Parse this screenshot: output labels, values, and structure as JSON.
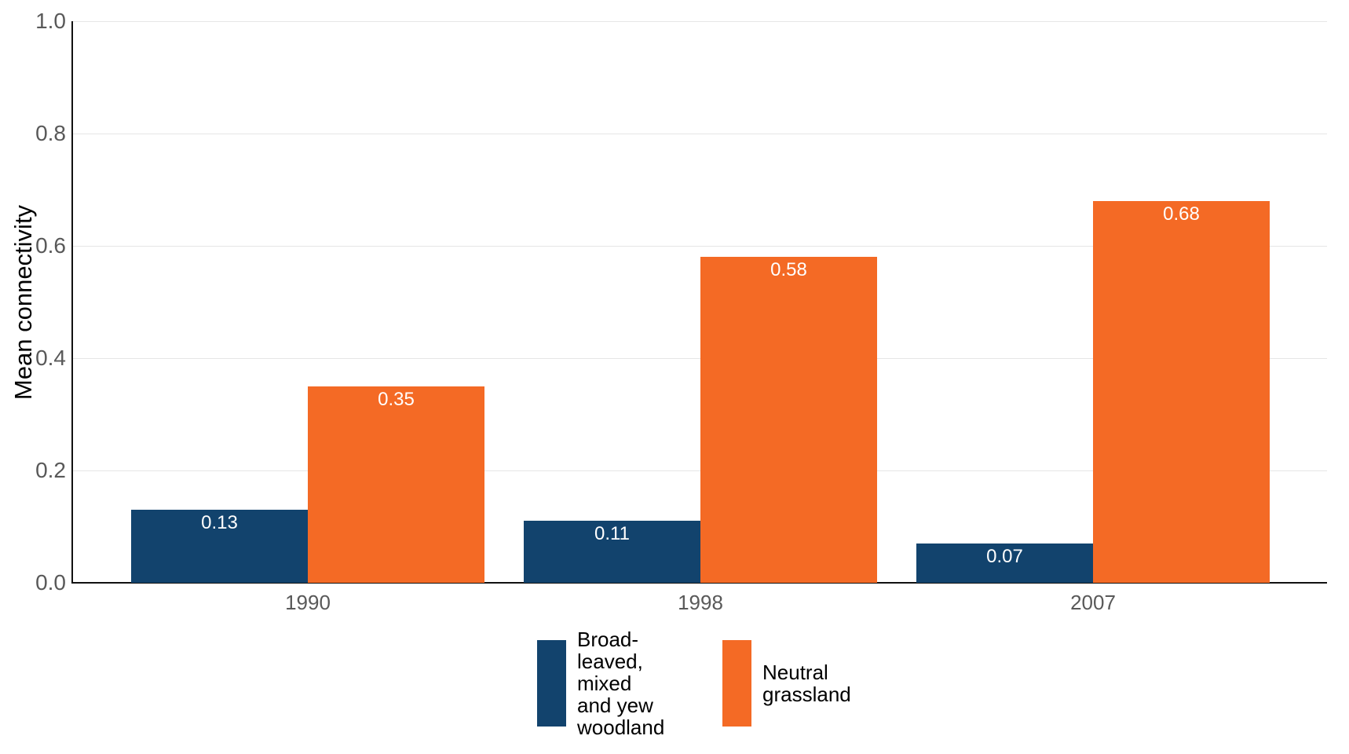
{
  "chart_data": {
    "type": "bar",
    "title": "",
    "xlabel": "",
    "ylabel": "Mean connectivity",
    "categories": [
      "1990",
      "1998",
      "2007"
    ],
    "series": [
      {
        "name": "Broad-leaved, mixed and yew woodland",
        "legend_lines": [
          "Broad-leaved,",
          "mixed",
          "and yew",
          "woodland"
        ],
        "color": "#12436D",
        "values": [
          0.13,
          0.11,
          0.07
        ],
        "labels": [
          "0.13",
          "0.11",
          "0.07"
        ]
      },
      {
        "name": "Neutral grassland",
        "legend_lines": [
          "Neutral",
          "grassland"
        ],
        "color": "#F46A25",
        "values": [
          0.35,
          0.58,
          0.68
        ],
        "labels": [
          "0.35",
          "0.58",
          "0.68"
        ]
      }
    ],
    "ylim": [
      0.0,
      1.0
    ],
    "yticks": [
      0.0,
      0.2,
      0.4,
      0.6,
      0.8,
      1.0
    ],
    "ytick_labels": [
      "0.0",
      "0.2",
      "0.4",
      "0.6",
      "0.8",
      "1.0"
    ],
    "grid": "horizontal",
    "legend_position": "bottom"
  },
  "colors": {
    "background": "#ffffff",
    "grid": "#e6e6e6",
    "axis": "#111111",
    "tick_label": "#595959",
    "value_label": "#ffffff",
    "legend_text": "#000000"
  }
}
